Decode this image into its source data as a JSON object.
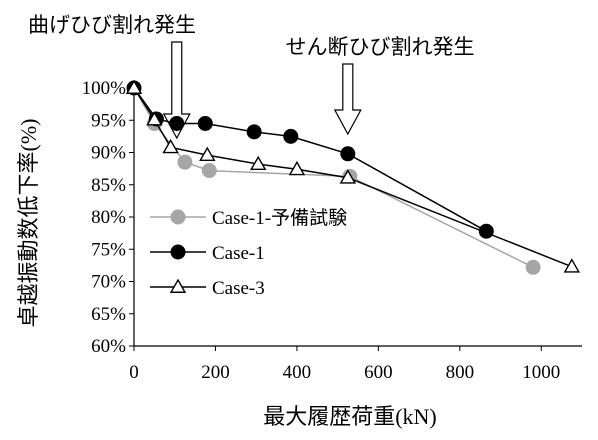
{
  "chart_data": {
    "type": "line",
    "xlabel": "最大履歴荷重(kN)",
    "ylabel": "卓越振動数低下率(%)",
    "xlim": [
      0,
      1100
    ],
    "ylim": [
      60,
      100
    ],
    "x_ticks": [
      0,
      200,
      400,
      600,
      800,
      1000
    ],
    "y_ticks": [
      60,
      65,
      70,
      75,
      80,
      85,
      90,
      95,
      100
    ],
    "y_tick_suffix": "%",
    "grid": false,
    "legend_position": "left",
    "series": [
      {
        "name": "Case-1-予備試験",
        "color": "#a6a6a6",
        "marker": "circle-filled",
        "points": [
          [
            0,
            100
          ],
          [
            50,
            94.5
          ],
          [
            125,
            88.5
          ],
          [
            185,
            87.2
          ],
          [
            530,
            86.3
          ],
          [
            980,
            72.2
          ]
        ]
      },
      {
        "name": "Case-1",
        "color": "#000000",
        "marker": "circle-filled",
        "points": [
          [
            0,
            100
          ],
          [
            55,
            95.2
          ],
          [
            105,
            94.5
          ],
          [
            175,
            94.5
          ],
          [
            295,
            93.2
          ],
          [
            385,
            92.5
          ],
          [
            525,
            89.8
          ],
          [
            865,
            77.8
          ]
        ]
      },
      {
        "name": "Case-3",
        "color": "#000000",
        "marker": "triangle-open",
        "points": [
          [
            0,
            100
          ],
          [
            50,
            95.1
          ],
          [
            90,
            90.8
          ],
          [
            180,
            89.6
          ],
          [
            305,
            88.2
          ],
          [
            400,
            87.4
          ],
          [
            525,
            86.1
          ],
          [
            1075,
            72.3
          ]
        ]
      }
    ],
    "annotations": [
      {
        "text": "曲げひび割れ発生",
        "x": 105,
        "y": 95.5
      },
      {
        "text": "せん断ひび割れ発生",
        "x": 525,
        "y": 91.5
      }
    ]
  }
}
